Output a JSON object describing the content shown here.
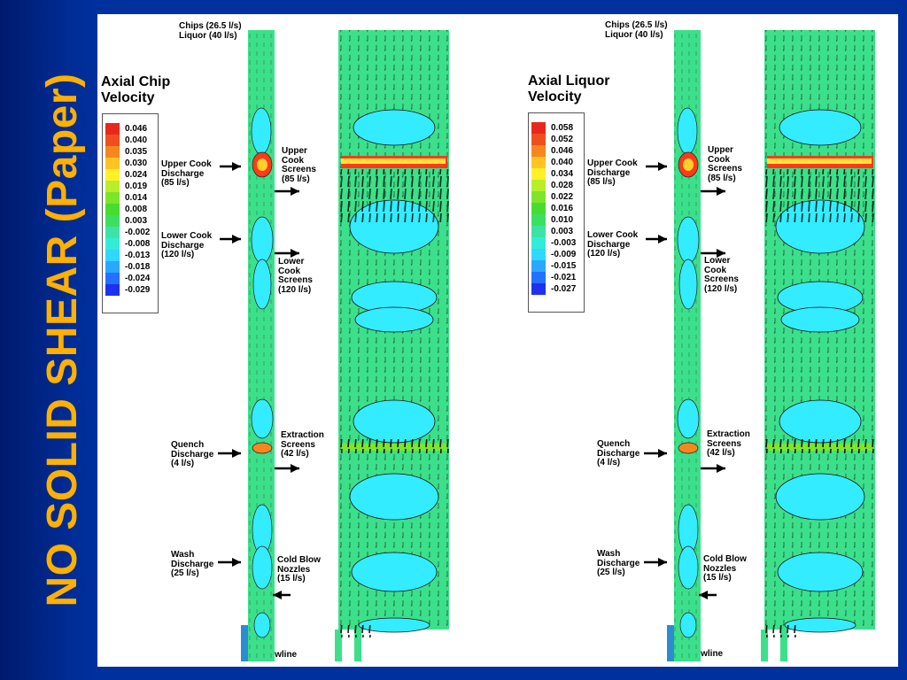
{
  "slide_title": "NO SOLID SHEAR (Paper)",
  "colors": {
    "title": "#ffb000",
    "background": "#00309e",
    "domain_green": "#3ce08a",
    "low_contour": "#33ecff",
    "high_contour": "#ff3a1a"
  },
  "panels": [
    {
      "title_line1": "Axial Chip",
      "title_line2": "Velocity",
      "legend": [
        "0.046",
        "0.040",
        "0.035",
        "0.030",
        "0.024",
        "0.019",
        "0.014",
        "0.008",
        "0.003",
        "-0.002",
        "-0.008",
        "-0.013",
        "-0.018",
        "-0.024",
        "-0.029"
      ],
      "labels": {
        "inlet_line1": "Chips (26.5 l/s)",
        "inlet_line2": "Liquor (40 l/s)",
        "upper_cook_discharge": "Upper Cook\nDischarge\n(85 l/s)",
        "upper_cook_screens": "Upper\nCook\nScreens\n(85 l/s)",
        "lower_cook_discharge": "Lower Cook\nDischarge\n(120 l/s)",
        "lower_cook_screens": "Lower\nCook\nScreens\n(120 l/s)",
        "extraction_screens": "Extraction\nScreens\n(42 l/s)",
        "quench_discharge": "Quench\nDischarge\n(4 l/s)",
        "wash_discharge": "Wash\nDischarge\n(25 l/s)",
        "cold_blow_nozzles": "Cold Blow\nNozzles\n(15 l/s)",
        "blowline": "Blowline"
      }
    },
    {
      "title_line1": "Axial Liquor",
      "title_line2": "Velocity",
      "legend": [
        "0.058",
        "0.052",
        "0.046",
        "0.040",
        "0.034",
        "0.028",
        "0.022",
        "0.016",
        "0.010",
        "0.003",
        "-0.003",
        "-0.009",
        "-0.015",
        "-0.021",
        "-0.027"
      ],
      "labels": {
        "inlet_line1": "Chips (26.5 l/s)",
        "inlet_line2": "Liquor (40 l/s)",
        "upper_cook_discharge": "Upper Cook\nDischarge\n(85 l/s)",
        "upper_cook_screens": "Upper\nCook\nScreens\n(85 l/s)",
        "lower_cook_discharge": "Lower Cook\nDischarge\n(120 l/s)",
        "lower_cook_screens": "Lower\nCook\nScreens\n(120 l/s)",
        "extraction_screens": "Extraction\nScreens\n(42 l/s)",
        "quench_discharge": "Quench\nDischarge\n(4 l/s)",
        "wash_discharge": "Wash\nDischarge\n(25 l/s)",
        "cold_blow_nozzles": "Cold Blow\nNozzles\n(15 l/s)",
        "blowline": "Blowline"
      }
    }
  ]
}
